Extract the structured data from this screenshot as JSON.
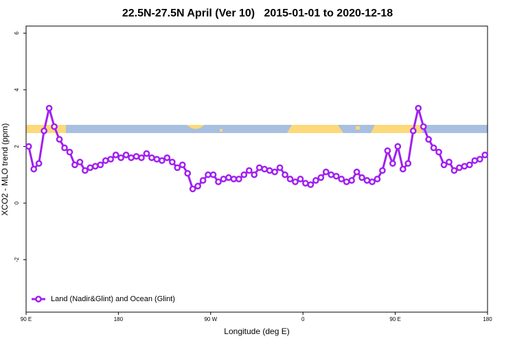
{
  "chart_data": {
    "type": "line",
    "title": "22.5N-27.5N April (Ver 10)   2015-01-01 to 2020-12-18",
    "x_label": "Longitude (deg E)",
    "y_label": "XCO2 - MLO trend (ppm)",
    "x": [
      92.5,
      97.5,
      102.5,
      107.5,
      112.5,
      117.5,
      122.5,
      127.5,
      132.5,
      137.5,
      142.5,
      147.5,
      152.5,
      157.5,
      162.5,
      167.5,
      172.5,
      177.5,
      182.5,
      187.5,
      192.5,
      197.5,
      202.5,
      207.5,
      212.5,
      217.5,
      222.5,
      227.5,
      232.5,
      237.5,
      242.5,
      247.5,
      252.5,
      257.5,
      262.5,
      267.5,
      272.5,
      277.5,
      282.5,
      287.5,
      292.5,
      297.5,
      302.5,
      307.5,
      312.5,
      317.5,
      322.5,
      327.5,
      332.5,
      337.5,
      342.5,
      347.5,
      352.5,
      357.5,
      362.5,
      367.5,
      372.5,
      377.5,
      382.5,
      387.5,
      392.5,
      397.5,
      402.5,
      407.5,
      412.5,
      417.5,
      422.5,
      427.5,
      432.5,
      437.5,
      442.5,
      447.5,
      452.5,
      457.5,
      462.5,
      467.5,
      472.5,
      477.5,
      482.5,
      487.5,
      492.5,
      497.5,
      502.5,
      507.5,
      512.5,
      517.5,
      522.5,
      527.5,
      532.5,
      537.5
    ],
    "series": [
      {
        "name": "Land (Nadir&Glint) and Ocean (Glint)",
        "color": "#a020f0",
        "values": [
          2.0,
          1.2,
          1.4,
          2.55,
          3.35,
          2.7,
          2.25,
          1.95,
          1.8,
          1.35,
          1.45,
          1.15,
          1.25,
          1.3,
          1.35,
          1.5,
          1.55,
          1.7,
          1.6,
          1.7,
          1.6,
          1.65,
          1.6,
          1.75,
          1.6,
          1.55,
          1.5,
          1.6,
          1.45,
          1.25,
          1.35,
          1.05,
          0.5,
          0.6,
          0.8,
          1.0,
          1.0,
          0.75,
          0.85,
          0.9,
          0.85,
          0.85,
          1.0,
          1.15,
          1.0,
          1.25,
          1.2,
          1.15,
          1.1,
          1.25,
          1.0,
          0.85,
          0.75,
          0.85,
          0.7,
          0.65,
          0.8,
          0.9,
          1.1,
          1.0,
          0.95,
          0.85,
          0.75,
          0.8,
          1.1,
          0.9,
          0.8,
          0.75,
          0.85,
          1.15,
          1.85,
          1.4,
          2.0,
          1.2,
          1.4,
          2.55,
          3.35,
          2.7,
          2.25,
          1.95,
          1.8,
          1.35,
          1.45,
          1.15,
          1.25,
          1.3,
          1.35,
          1.5,
          1.55,
          1.7
        ]
      }
    ],
    "xlim": [
      90,
      540
    ],
    "xticks": [
      {
        "value": 90,
        "label": "90 E"
      },
      180,
      {
        "value": 270,
        "label": "90 W"
      },
      {
        "value": 360,
        "label": "0"
      },
      {
        "value": 450,
        "label": "90 E"
      },
      {
        "value": 540,
        "label": "180"
      }
    ],
    "ylim": [
      -3.85,
      6.25
    ],
    "yticks": [
      -2,
      0,
      2,
      4,
      6
    ],
    "legend": "bottom-left"
  }
}
